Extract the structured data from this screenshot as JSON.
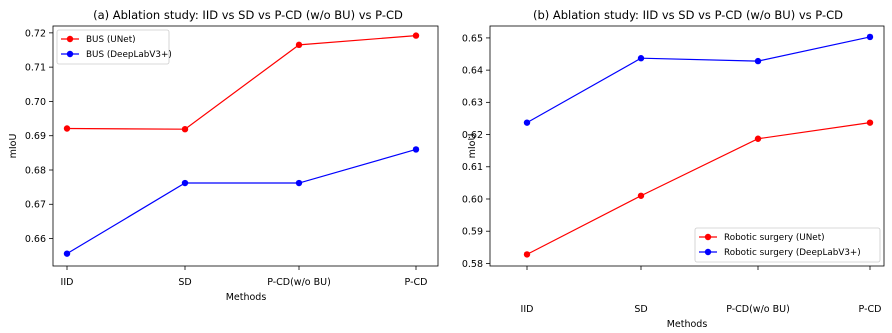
{
  "chart_data": [
    {
      "type": "line",
      "title": "(a) Ablation study: IID vs SD vs P-CD (w/o BU) vs P-CD",
      "xlabel": "Methods",
      "ylabel": "mIoU",
      "categories": [
        "IID",
        "SD",
        "P-CD(w/o BU)",
        "P-CD"
      ],
      "ylim": [
        0.652,
        0.722
      ],
      "yticks": [
        0.66,
        0.67,
        0.68,
        0.69,
        0.7,
        0.71,
        0.72
      ],
      "ytick_labels": [
        "0.66",
        "0.67",
        "0.68",
        "0.69",
        "0.70",
        "0.71",
        "0.72"
      ],
      "legend_position": "top-left",
      "grid": false,
      "series": [
        {
          "name": "BUS (UNet)",
          "color": "#ff0000",
          "values": [
            0.6921,
            0.6919,
            0.7165,
            0.7192
          ]
        },
        {
          "name": "BUS (DeepLabV3+)",
          "color": "#0000ff",
          "values": [
            0.6556,
            0.6762,
            0.6762,
            0.686
          ]
        }
      ]
    },
    {
      "type": "line",
      "title": "(b) Ablation study: IID vs SD vs P-CD (w/o BU) vs P-CD",
      "xlabel": "Methods",
      "ylabel": "mIoU",
      "categories": [
        "IID",
        "SD",
        "P-CD(w/o BU)",
        "P-CD"
      ],
      "ylim": [
        0.5792,
        0.6537
      ],
      "yticks": [
        0.58,
        0.59,
        0.6,
        0.61,
        0.62,
        0.63,
        0.64,
        0.65
      ],
      "ytick_labels": [
        "0.58",
        "0.59",
        "0.60",
        "0.61",
        "0.62",
        "0.63",
        "0.64",
        "0.65"
      ],
      "legend_position": "bottom-right",
      "grid": false,
      "series": [
        {
          "name": "Robotic surgery (UNet)",
          "color": "#ff0000",
          "values": [
            0.5828,
            0.601,
            0.6187,
            0.6237
          ]
        },
        {
          "name": "Robotic surgery (DeepLabV3+)",
          "color": "#0000ff",
          "values": [
            0.6237,
            0.6437,
            0.6428,
            0.6503
          ]
        }
      ]
    }
  ]
}
